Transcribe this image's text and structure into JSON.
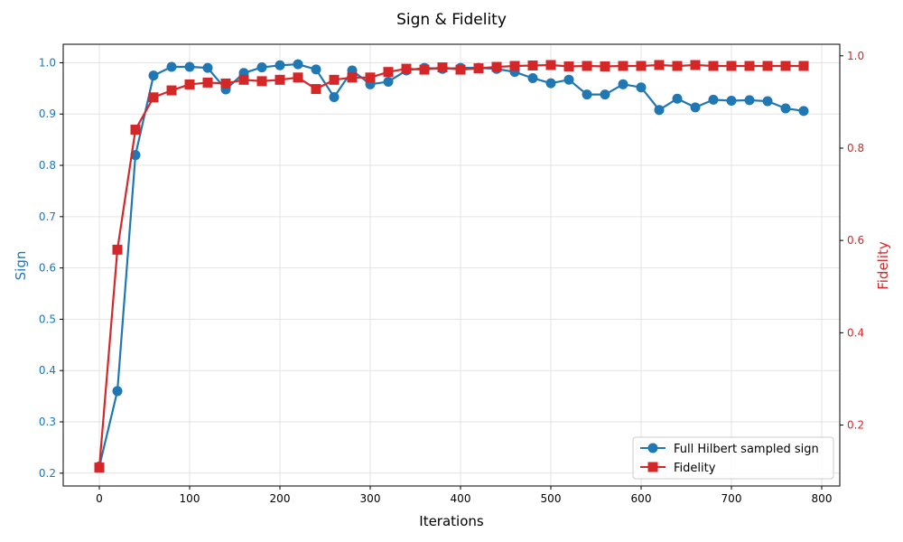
{
  "chart_data": {
    "type": "line",
    "title": "Sign & Fidelity",
    "xlabel": "Iterations",
    "ylabel_left": "Sign",
    "ylabel_right": "Fidelity",
    "xlim": [
      -40,
      820
    ],
    "ylim_left": [
      0.175,
      1.036
    ],
    "ylim_right": [
      0.068,
      1.025
    ],
    "x_ticks": [
      0,
      100,
      200,
      300,
      400,
      500,
      600,
      700,
      800
    ],
    "y_ticks_left": [
      0.2,
      0.3,
      0.4,
      0.5,
      0.6,
      0.7,
      0.8,
      0.9,
      1.0
    ],
    "y_ticks_right": [
      0.2,
      0.4,
      0.6,
      0.8,
      1.0
    ],
    "grid": true,
    "legend_position": "bottom-right",
    "x": [
      0,
      20,
      40,
      60,
      80,
      100,
      120,
      140,
      160,
      180,
      200,
      220,
      240,
      260,
      280,
      300,
      320,
      340,
      360,
      380,
      400,
      420,
      440,
      460,
      480,
      500,
      520,
      540,
      560,
      580,
      600,
      620,
      640,
      660,
      680,
      700,
      720,
      740,
      760,
      780
    ],
    "series": [
      {
        "name": "Full Hilbert sampled sign",
        "axis": "left",
        "marker": "circle",
        "color": "#1f77b4",
        "values": [
          0.213,
          0.36,
          0.82,
          0.975,
          0.992,
          0.992,
          0.99,
          0.948,
          0.98,
          0.991,
          0.995,
          0.997,
          0.987,
          0.933,
          0.985,
          0.958,
          0.963,
          0.985,
          0.99,
          0.988,
          0.99,
          0.99,
          0.988,
          0.982,
          0.97,
          0.96,
          0.967,
          0.938,
          0.938,
          0.958,
          0.952,
          0.908,
          0.93,
          0.913,
          0.928,
          0.926,
          0.927,
          0.925,
          0.911,
          0.906
        ]
      },
      {
        "name": "Fidelity",
        "axis": "right",
        "marker": "square",
        "color": "#d62728",
        "values": [
          0.108,
          0.58,
          0.84,
          0.91,
          0.925,
          0.938,
          0.942,
          0.94,
          0.948,
          0.945,
          0.948,
          0.953,
          0.928,
          0.948,
          0.953,
          0.953,
          0.965,
          0.972,
          0.97,
          0.975,
          0.97,
          0.973,
          0.976,
          0.978,
          0.979,
          0.98,
          0.977,
          0.978,
          0.977,
          0.978,
          0.978,
          0.98,
          0.978,
          0.98,
          0.978,
          0.978,
          0.978,
          0.978,
          0.978,
          0.978
        ]
      }
    ]
  }
}
